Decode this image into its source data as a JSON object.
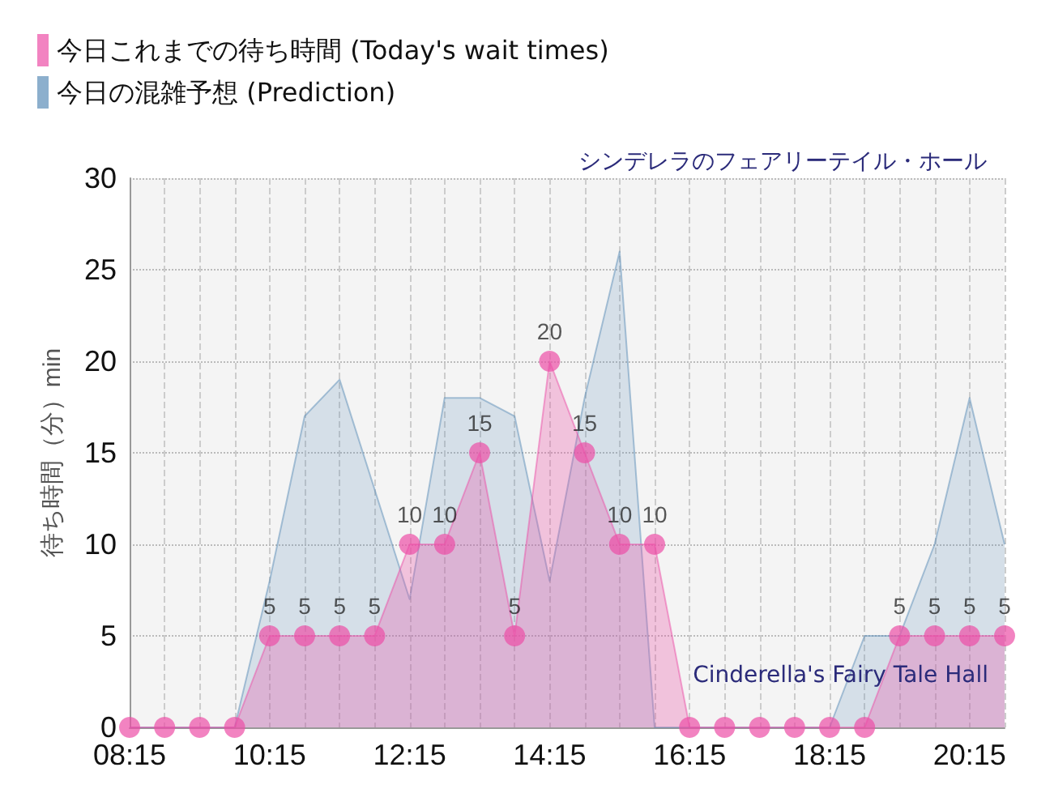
{
  "chart_data": {
    "type": "area",
    "title": "シンデレラのフェアリーテイル・ホール",
    "ylabel": "待ち時間（分）min",
    "categories": [
      "08:15",
      null,
      null,
      null,
      "10:15",
      null,
      null,
      null,
      "12:15",
      null,
      null,
      null,
      "14:15",
      null,
      null,
      null,
      "16:15",
      null,
      null,
      null,
      "18:15",
      null,
      null,
      null,
      "20:15",
      null
    ],
    "series": [
      {
        "name": "今日これまでの待ち時間 (Today's wait times)",
        "color": "#ec4fa7",
        "marker": "circle",
        "values": [
          0,
          0,
          0,
          0,
          5,
          5,
          5,
          5,
          10,
          10,
          15,
          5,
          20,
          15,
          10,
          10,
          0,
          0,
          0,
          0,
          0,
          0,
          5,
          5,
          5,
          5
        ],
        "value_labels": [
          null,
          null,
          null,
          null,
          "5",
          "5",
          "5",
          "5",
          "10",
          "10",
          "15",
          "5",
          "20",
          "15",
          "10",
          "10",
          null,
          null,
          null,
          null,
          null,
          null,
          "5",
          "5",
          "5",
          "5"
        ]
      },
      {
        "name": "今日の混雑予想 (Prediction)",
        "color": "#5b8db8",
        "values": [
          0,
          0,
          0,
          0,
          8,
          17,
          19,
          13,
          7,
          18,
          18,
          17,
          8,
          18,
          26,
          0,
          0,
          0,
          0,
          0,
          0,
          5,
          5,
          10,
          18,
          10
        ]
      }
    ],
    "ylim": [
      0,
      30
    ],
    "yticks": [
      0,
      5,
      10,
      15,
      20,
      25,
      30
    ],
    "grid": true,
    "legend": "top left",
    "annotations": [
      "Cinderella's Fairy Tale Hall"
    ]
  }
}
